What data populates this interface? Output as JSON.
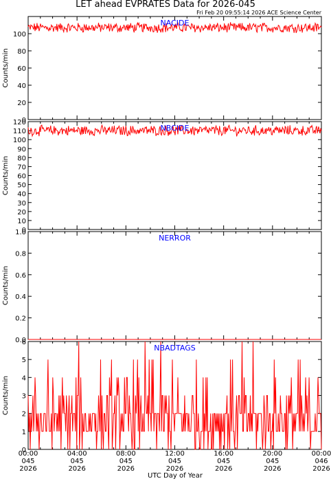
{
  "title": "LET ahead EVPRATES Data for 2026-045",
  "timestamp": "Fri Feb 20 09:55:14 2026 ACE Science Center",
  "xlabel": "UTC Day of Year",
  "colors": {
    "series": "#ff0000",
    "panel_label": "#0000ff",
    "axes": "#000000"
  },
  "chart_data": [
    {
      "type": "line",
      "name": "NACIDE",
      "ylabel": "Counts/min",
      "ylim": [
        0,
        120
      ],
      "yticks": [
        0,
        20,
        40,
        60,
        80,
        100
      ],
      "mean": 107,
      "spread": 5
    },
    {
      "type": "line",
      "name": "NBCIDE",
      "ylabel": "Counts/min",
      "ylim": [
        0,
        120
      ],
      "yticks": [
        0,
        10,
        20,
        30,
        40,
        50,
        60,
        70,
        80,
        90,
        100,
        110,
        120
      ],
      "mean": 110,
      "spread": 5
    },
    {
      "type": "line",
      "name": "NERROR",
      "ylabel": "Counts/min",
      "ylim": [
        0,
        1
      ],
      "yticks": [
        "0.0",
        "0.2",
        "0.4",
        "0.6",
        "0.8",
        "1.0"
      ],
      "mean": 0,
      "spread": 0
    },
    {
      "type": "line",
      "name": "NBADTAGS",
      "ylabel": "Counts/min",
      "ylim": [
        0,
        6
      ],
      "yticks": [
        0,
        1,
        2,
        3,
        4,
        5,
        6
      ],
      "discrete": true
    }
  ],
  "xaxis": {
    "ticks": [
      {
        "time": "00:00",
        "day": "045",
        "year": "2026"
      },
      {
        "time": "04:00",
        "day": "045",
        "year": "2026"
      },
      {
        "time": "08:00",
        "day": "045",
        "year": "2026"
      },
      {
        "time": "12:00",
        "day": "045",
        "year": "2026"
      },
      {
        "time": "16:00",
        "day": "045",
        "year": "2026"
      },
      {
        "time": "20:00",
        "day": "045",
        "year": "2026"
      },
      {
        "time": "00:00",
        "day": "046",
        "year": "2026"
      }
    ]
  }
}
